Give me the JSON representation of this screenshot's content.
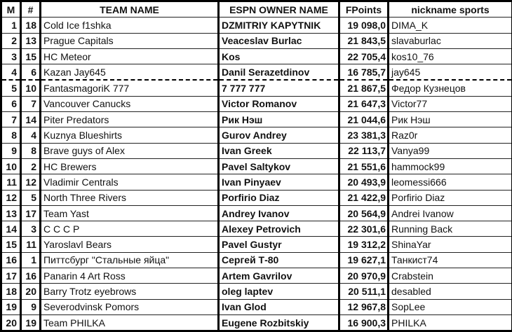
{
  "headers": {
    "m": "M",
    "num": "#",
    "team": "TEAM NAME",
    "owner": "ESPN OWNER NAME",
    "points": "FPoints",
    "nickname": "nickname sports"
  },
  "cutoff_after_row": 4,
  "rows": [
    {
      "m": "1",
      "num": "18",
      "team": "Cold Ice f1shka",
      "owner": "DZMITRIY KAPYTNIK",
      "points": "19 098,0",
      "nickname": "DIMA_K"
    },
    {
      "m": "2",
      "num": "13",
      "team": "Prague Capitals",
      "owner": "Veaceslav Burlac",
      "points": "21 843,5",
      "nickname": "slavaburlac"
    },
    {
      "m": "3",
      "num": "15",
      "team": "HC Meteor",
      "owner": "Kos",
      "points": "22 705,4",
      "nickname": "kos10_76"
    },
    {
      "m": "4",
      "num": "6",
      "team": "Kazan Jay645",
      "owner": "Danil Serazetdinov",
      "points": "16 785,7",
      "nickname": "jay645"
    },
    {
      "m": "5",
      "num": "10",
      "team": "FantasmagoriK 777",
      "owner": "7 777 777",
      "points": "21 867,5",
      "nickname": "Федор Кузнецов"
    },
    {
      "m": "6",
      "num": "7",
      "team": "Vancouver Canucks",
      "owner": "Victor Romanov",
      "points": "21 647,3",
      "nickname": "Victor77"
    },
    {
      "m": "7",
      "num": "14",
      "team": "Piter Predators",
      "owner": "Рик Нэш",
      "points": "21 044,6",
      "nickname": "Рик Нэш"
    },
    {
      "m": "8",
      "num": "4",
      "team": "Kuznya Blueshirts",
      "owner": "Gurov Andrey",
      "points": "23 381,3",
      "nickname": "Raz0r"
    },
    {
      "m": "9",
      "num": "8",
      "team": "Brave guys of Alex",
      "owner": "Ivan Greek",
      "points": "22 113,7",
      "nickname": "Vanya99"
    },
    {
      "m": "10",
      "num": "2",
      "team": "HC Brewers",
      "owner": "Pavel Saltykov",
      "points": "21 551,6",
      "nickname": "hammock99"
    },
    {
      "m": "11",
      "num": "12",
      "team": "Vladimir Centrals",
      "owner": "Ivan Pinyaev",
      "points": "20 493,9",
      "nickname": "leomessi666"
    },
    {
      "m": "12",
      "num": "5",
      "team": "North Three Rivers",
      "owner": "Porfirio Diaz",
      "points": "21 422,9",
      "nickname": "Porfirio Diaz"
    },
    {
      "m": "13",
      "num": "17",
      "team": "Team Yast",
      "owner": "Andrey Ivanov",
      "points": "20 564,9",
      "nickname": "Andrei Ivanow"
    },
    {
      "m": "14",
      "num": "3",
      "team": "C C C P",
      "owner": "Alexey Petrovich",
      "points": "22 301,6",
      "nickname": "Running Back"
    },
    {
      "m": "15",
      "num": "11",
      "team": "Yaroslavl Bears",
      "owner": "Pavel Gustyr",
      "points": "19 312,2",
      "nickname": "ShinaYar"
    },
    {
      "m": "16",
      "num": "1",
      "team": "Питтсбург \"Стальные яйца\"",
      "owner": "Сергей Т-80",
      "points": "19 627,1",
      "nickname": "Танкист74"
    },
    {
      "m": "17",
      "num": "16",
      "team": "Panarin 4 Art Ross",
      "owner": "Artem Gavrilov",
      "points": "20 970,9",
      "nickname": "Crabstein"
    },
    {
      "m": "18",
      "num": "20",
      "team": "Barry Trotz eyebrows",
      "owner": "oleg laptev",
      "points": "20 511,1",
      "nickname": "desabled"
    },
    {
      "m": "19",
      "num": "9",
      "team": "Severodvinsk Pomors",
      "owner": "Ivan Glod",
      "points": "12 967,8",
      "nickname": "SopLee"
    },
    {
      "m": "20",
      "num": "19",
      "team": "Team PHILKA",
      "owner": "Eugene Rozbitskiy",
      "points": "16 900,3",
      "nickname": "PHILKA"
    }
  ]
}
